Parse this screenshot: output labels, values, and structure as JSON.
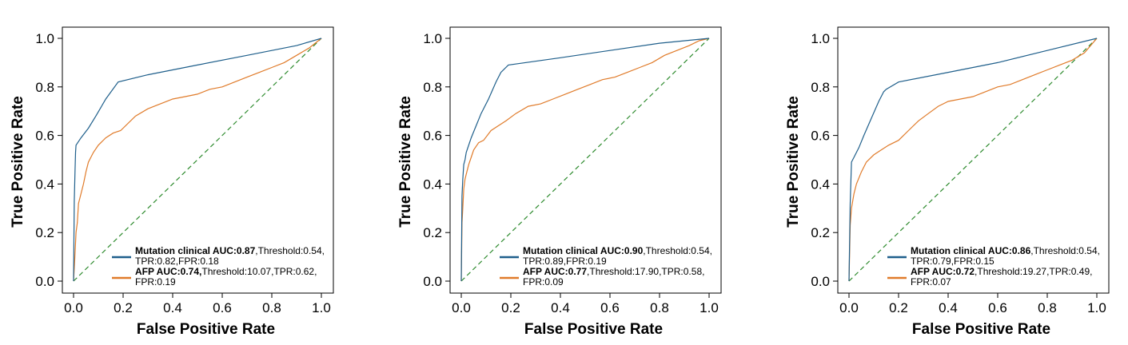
{
  "chart_data": [
    {
      "type": "line",
      "xlabel": "False Positive Rate",
      "ylabel": "True Positive Rate",
      "xlim": [
        0,
        1
      ],
      "ylim": [
        0,
        1
      ],
      "xticks": [
        "0.0",
        "0.2",
        "0.4",
        "0.6",
        "0.8",
        "1.0"
      ],
      "yticks": [
        "0.0",
        "0.2",
        "0.4",
        "0.6",
        "0.8",
        "1.0"
      ],
      "grid": false,
      "legend_position": "lower-right",
      "series": [
        {
          "legend_bold": "Mutation clinical AUC:0.87",
          "legend_rest_1": ",Threshold:0.54,",
          "legend_rest_2": "TPR:0.82,FPR:0.18",
          "color": "#1f5f8b",
          "x": [
            0,
            0.003,
            0.006,
            0.008,
            0.01,
            0.03,
            0.06,
            0.09,
            0.13,
            0.18,
            0.3,
            0.5,
            0.7,
            0.9,
            1.0
          ],
          "y": [
            0,
            0.33,
            0.46,
            0.53,
            0.56,
            0.59,
            0.63,
            0.68,
            0.75,
            0.82,
            0.85,
            0.89,
            0.93,
            0.97,
            1.0
          ]
        },
        {
          "legend_bold": "AFP  AUC:0.74,",
          "legend_rest_1": "Threshold:10.07,TPR:0.62,",
          "legend_rest_2": "FPR:0.19",
          "color": "#e07b2a",
          "x": [
            0,
            0.005,
            0.01,
            0.015,
            0.02,
            0.03,
            0.04,
            0.05,
            0.06,
            0.08,
            0.1,
            0.13,
            0.16,
            0.19,
            0.25,
            0.3,
            0.35,
            0.4,
            0.45,
            0.5,
            0.55,
            0.6,
            0.65,
            0.7,
            0.75,
            0.8,
            0.85,
            0.9,
            0.95,
            1.0
          ],
          "y": [
            0,
            0.09,
            0.2,
            0.24,
            0.32,
            0.36,
            0.4,
            0.45,
            0.49,
            0.53,
            0.56,
            0.59,
            0.61,
            0.62,
            0.68,
            0.71,
            0.73,
            0.75,
            0.76,
            0.77,
            0.79,
            0.8,
            0.82,
            0.84,
            0.86,
            0.88,
            0.9,
            0.93,
            0.96,
            1.0
          ]
        },
        {
          "color": "#2e8b2e",
          "dashed": true,
          "x": [
            0,
            1
          ],
          "y": [
            0,
            1
          ]
        }
      ]
    },
    {
      "type": "line",
      "xlabel": "False Positive Rate",
      "ylabel": "True Positive Rate",
      "xlim": [
        0,
        1
      ],
      "ylim": [
        0,
        1
      ],
      "xticks": [
        "0.0",
        "0.2",
        "0.4",
        "0.6",
        "0.8",
        "1.0"
      ],
      "yticks": [
        "0.0",
        "0.2",
        "0.4",
        "0.6",
        "0.8",
        "1.0"
      ],
      "grid": false,
      "legend_position": "lower-right",
      "series": [
        {
          "legend_bold": "Mutation clinical AUC:0.90",
          "legend_rest_1": ",Threshold:0.54,",
          "legend_rest_2": "TPR:0.89,FPR:0.19",
          "color": "#1f5f8b",
          "x": [
            0,
            0.003,
            0.006,
            0.01,
            0.015,
            0.02,
            0.04,
            0.06,
            0.08,
            0.11,
            0.14,
            0.16,
            0.19,
            0.4,
            0.6,
            0.8,
            1.0
          ],
          "y": [
            0,
            0.35,
            0.42,
            0.48,
            0.5,
            0.53,
            0.59,
            0.64,
            0.69,
            0.75,
            0.82,
            0.86,
            0.89,
            0.92,
            0.95,
            0.98,
            1.0
          ]
        },
        {
          "legend_bold": "AFP  AUC:0.77",
          "legend_rest_1": ",Threshold:17.90,TPR:0.58,",
          "legend_rest_2": "FPR:0.09",
          "color": "#e07b2a",
          "x": [
            0,
            0.003,
            0.006,
            0.01,
            0.015,
            0.02,
            0.03,
            0.04,
            0.05,
            0.07,
            0.09,
            0.12,
            0.15,
            0.18,
            0.22,
            0.27,
            0.32,
            0.37,
            0.42,
            0.47,
            0.52,
            0.57,
            0.62,
            0.67,
            0.72,
            0.77,
            0.82,
            0.87,
            0.92,
            0.96,
            1.0
          ],
          "y": [
            0,
            0.24,
            0.3,
            0.38,
            0.42,
            0.44,
            0.48,
            0.51,
            0.54,
            0.57,
            0.58,
            0.62,
            0.64,
            0.66,
            0.69,
            0.72,
            0.73,
            0.75,
            0.77,
            0.79,
            0.81,
            0.83,
            0.84,
            0.86,
            0.88,
            0.9,
            0.93,
            0.95,
            0.97,
            0.99,
            1.0
          ]
        },
        {
          "color": "#2e8b2e",
          "dashed": true,
          "x": [
            0,
            1
          ],
          "y": [
            0,
            1
          ]
        }
      ]
    },
    {
      "type": "line",
      "xlabel": "False Positive Rate",
      "ylabel": "True Positive Rate",
      "xlim": [
        0,
        1
      ],
      "ylim": [
        0,
        1
      ],
      "xticks": [
        "0.0",
        "0.2",
        "0.4",
        "0.6",
        "0.8",
        "1.0"
      ],
      "yticks": [
        "0.0",
        "0.2",
        "0.4",
        "0.6",
        "0.8",
        "1.0"
      ],
      "grid": false,
      "legend_position": "lower-right",
      "series": [
        {
          "legend_bold": "Mutation clinical AUC:0.86",
          "legend_rest_1": ",Threshold:0.54,",
          "legend_rest_2": "TPR:0.79,FPR:0.15",
          "color": "#1f5f8b",
          "x": [
            0,
            0.005,
            0.01,
            0.02,
            0.04,
            0.06,
            0.09,
            0.12,
            0.14,
            0.15,
            0.2,
            0.4,
            0.6,
            0.8,
            1.0
          ],
          "y": [
            0,
            0.32,
            0.49,
            0.51,
            0.55,
            0.6,
            0.67,
            0.74,
            0.78,
            0.79,
            0.82,
            0.86,
            0.9,
            0.95,
            1.0
          ]
        },
        {
          "legend_bold": "AFP  AUC:0.72",
          "legend_rest_1": ",Threshold:19.27,TPR:0.49,",
          "legend_rest_2": "FPR:0.07",
          "color": "#e07b2a",
          "x": [
            0,
            0.005,
            0.01,
            0.02,
            0.03,
            0.05,
            0.07,
            0.1,
            0.13,
            0.16,
            0.2,
            0.24,
            0.28,
            0.32,
            0.36,
            0.4,
            0.45,
            0.5,
            0.55,
            0.6,
            0.65,
            0.7,
            0.75,
            0.8,
            0.85,
            0.9,
            0.95,
            1.0
          ],
          "y": [
            0,
            0.23,
            0.3,
            0.36,
            0.4,
            0.45,
            0.49,
            0.52,
            0.54,
            0.56,
            0.58,
            0.62,
            0.66,
            0.69,
            0.72,
            0.74,
            0.75,
            0.76,
            0.78,
            0.8,
            0.81,
            0.83,
            0.85,
            0.87,
            0.89,
            0.91,
            0.94,
            1.0
          ]
        },
        {
          "color": "#2e8b2e",
          "dashed": true,
          "x": [
            0,
            1
          ],
          "y": [
            0,
            1
          ]
        }
      ]
    }
  ]
}
